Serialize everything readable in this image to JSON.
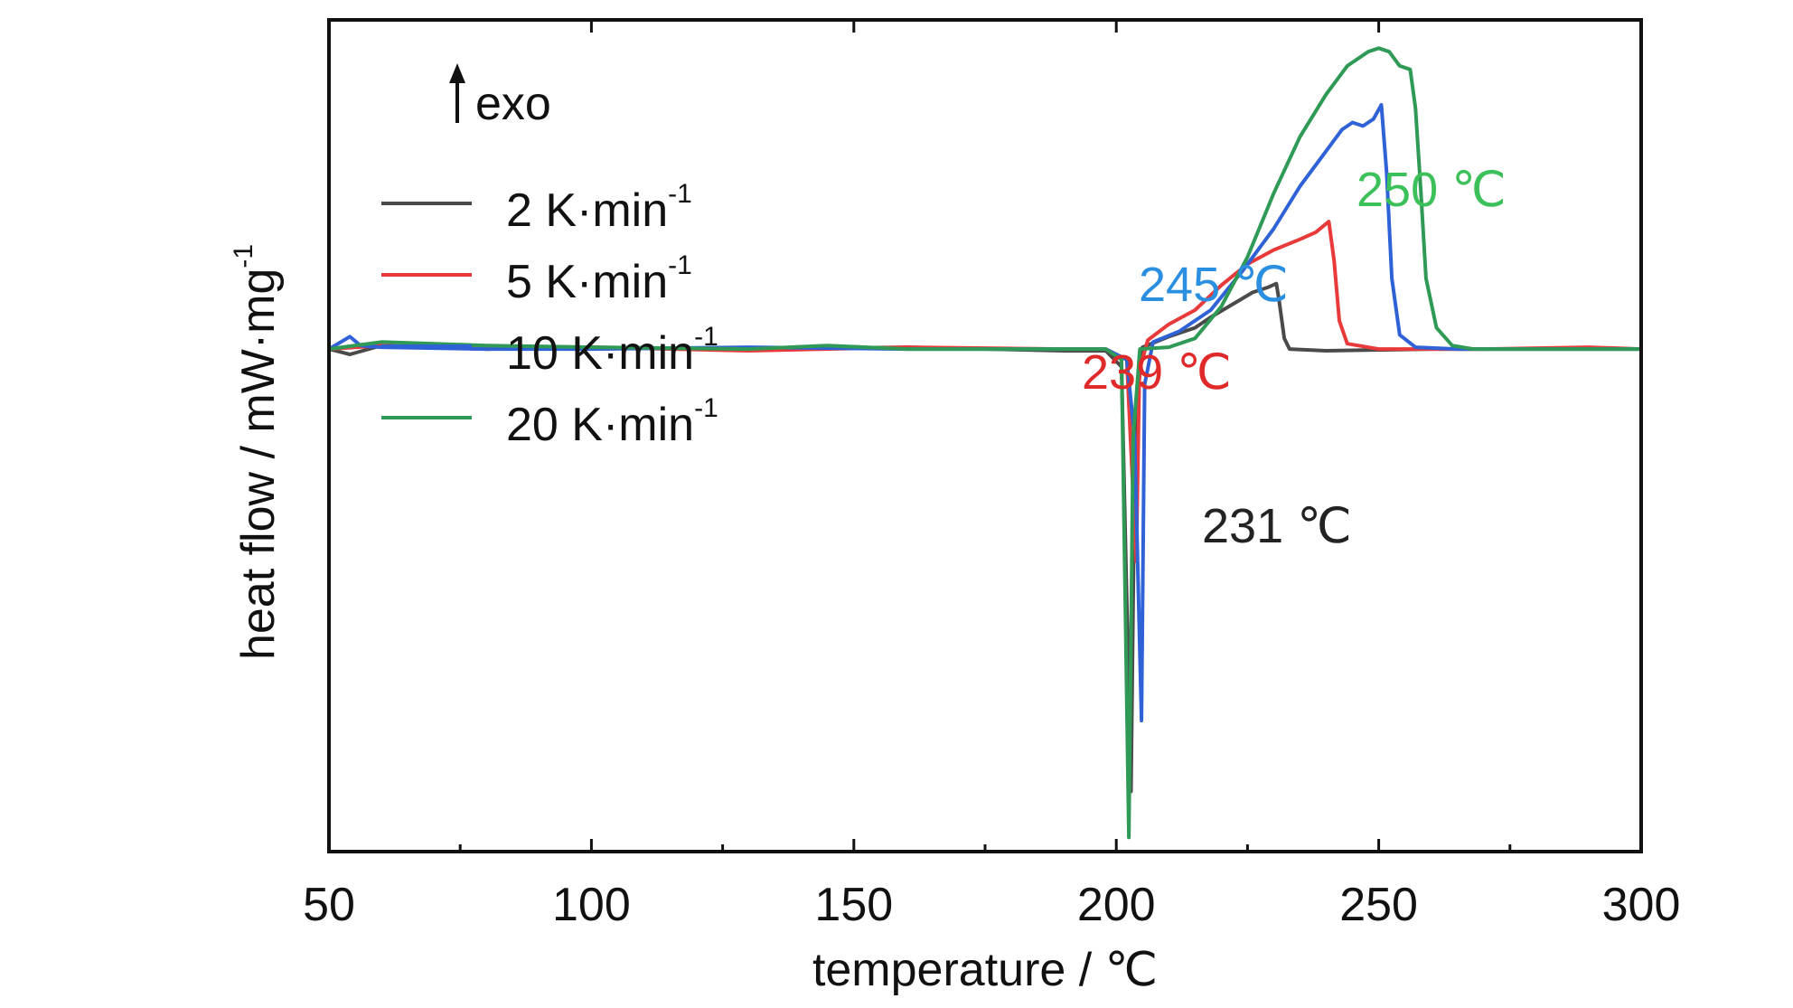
{
  "chart_data": {
    "type": "line",
    "xlabel": "temperature / ℃",
    "ylabel_main": "heat flow / mW·mg",
    "ylabel_sup": "-1",
    "xlim": [
      50,
      300
    ],
    "ylim": [
      -14.2,
      9.3
    ],
    "x_ticks": [
      50,
      100,
      150,
      200,
      250,
      300
    ],
    "x_tick_labels": [
      "50",
      "100",
      "150",
      "200",
      "250",
      "300"
    ],
    "x_minor_ticks": [
      75,
      125,
      175,
      225,
      275
    ],
    "exo_label": "exo",
    "legend_position": "top-left",
    "series": [
      {
        "name": "2 K·min",
        "name_sup": "-1",
        "color": "#4a4a4a",
        "points": [
          [
            50,
            0.0
          ],
          [
            54,
            -0.15
          ],
          [
            60,
            0.1
          ],
          [
            80,
            0.0
          ],
          [
            100,
            0.05
          ],
          [
            130,
            0.0
          ],
          [
            160,
            0.05
          ],
          [
            190,
            -0.05
          ],
          [
            198,
            -0.05
          ],
          [
            201,
            -0.5
          ],
          [
            202.8,
            -12.5
          ],
          [
            203.6,
            -2.0
          ],
          [
            205,
            0.05
          ],
          [
            210,
            0.35
          ],
          [
            215,
            0.6
          ],
          [
            218,
            0.9
          ],
          [
            222,
            1.25
          ],
          [
            226,
            1.6
          ],
          [
            229,
            1.75
          ],
          [
            230.5,
            1.85
          ],
          [
            231,
            1.4
          ],
          [
            232,
            0.3
          ],
          [
            233,
            0.0
          ],
          [
            240,
            -0.05
          ],
          [
            260,
            0.0
          ],
          [
            280,
            0.0
          ],
          [
            300,
            0.0
          ]
        ]
      },
      {
        "name": "5 K·min",
        "name_sup": "-1",
        "color": "#e83a3a",
        "points": [
          [
            50,
            0.0
          ],
          [
            60,
            0.1
          ],
          [
            80,
            0.0
          ],
          [
            100,
            0.05
          ],
          [
            130,
            -0.05
          ],
          [
            160,
            0.05
          ],
          [
            190,
            0.0
          ],
          [
            198,
            0.0
          ],
          [
            202,
            -0.3
          ],
          [
            203.8,
            -6.0
          ],
          [
            204.4,
            -0.6
          ],
          [
            206,
            0.25
          ],
          [
            210,
            0.7
          ],
          [
            215,
            1.1
          ],
          [
            220,
            1.8
          ],
          [
            225,
            2.4
          ],
          [
            230,
            2.8
          ],
          [
            235,
            3.1
          ],
          [
            238,
            3.3
          ],
          [
            240.5,
            3.6
          ],
          [
            241.5,
            2.5
          ],
          [
            242.5,
            0.8
          ],
          [
            244,
            0.15
          ],
          [
            250,
            0.0
          ],
          [
            270,
            0.0
          ],
          [
            290,
            0.05
          ],
          [
            300,
            0.0
          ]
        ]
      },
      {
        "name": "10 K·min",
        "name_sup": "-1",
        "color": "#2f62d6",
        "points": [
          [
            50,
            0.0
          ],
          [
            54,
            0.35
          ],
          [
            56,
            0.1
          ],
          [
            60,
            0.05
          ],
          [
            80,
            0.0
          ],
          [
            100,
            0.0
          ],
          [
            130,
            0.05
          ],
          [
            160,
            0.0
          ],
          [
            190,
            0.0
          ],
          [
            198,
            0.0
          ],
          [
            202,
            -0.3
          ],
          [
            203.5,
            -2.5
          ],
          [
            204.8,
            -10.5
          ],
          [
            205.4,
            -1.0
          ],
          [
            207,
            0.2
          ],
          [
            212,
            0.5
          ],
          [
            218,
            1.1
          ],
          [
            224,
            2.2
          ],
          [
            230,
            3.4
          ],
          [
            235,
            4.6
          ],
          [
            240,
            5.6
          ],
          [
            243,
            6.2
          ],
          [
            245,
            6.4
          ],
          [
            247,
            6.3
          ],
          [
            249,
            6.5
          ],
          [
            250.5,
            6.9
          ],
          [
            251.5,
            5.0
          ],
          [
            252.5,
            2.0
          ],
          [
            254,
            0.4
          ],
          [
            257,
            0.05
          ],
          [
            265,
            0.0
          ],
          [
            285,
            0.0
          ],
          [
            300,
            0.0
          ]
        ]
      },
      {
        "name": "20 K·min",
        "name_sup": "-1",
        "color": "#2f9a55",
        "points": [
          [
            50,
            0.0
          ],
          [
            60,
            0.2
          ],
          [
            70,
            0.15
          ],
          [
            80,
            0.1
          ],
          [
            100,
            0.05
          ],
          [
            130,
            0.0
          ],
          [
            145,
            0.1
          ],
          [
            160,
            0.0
          ],
          [
            190,
            0.0
          ],
          [
            198,
            0.0
          ],
          [
            201,
            -0.3
          ],
          [
            202.4,
            -13.8
          ],
          [
            203.2,
            -2.5
          ],
          [
            204.5,
            0.0
          ],
          [
            210,
            0.05
          ],
          [
            215,
            0.3
          ],
          [
            220,
            1.2
          ],
          [
            225,
            2.6
          ],
          [
            230,
            4.4
          ],
          [
            235,
            6.0
          ],
          [
            240,
            7.2
          ],
          [
            244,
            8.0
          ],
          [
            248,
            8.4
          ],
          [
            250,
            8.5
          ],
          [
            252,
            8.4
          ],
          [
            254,
            8.0
          ],
          [
            256,
            7.9
          ],
          [
            257,
            6.8
          ],
          [
            258,
            4.5
          ],
          [
            259,
            2.0
          ],
          [
            261,
            0.6
          ],
          [
            264,
            0.1
          ],
          [
            268,
            0.0
          ],
          [
            280,
            0.0
          ],
          [
            300,
            0.0
          ]
        ]
      }
    ],
    "annotations": [
      {
        "text": "231 ℃",
        "color": "#222222"
      },
      {
        "text": "239 ℃",
        "color": "#e02a2a"
      },
      {
        "text": "245 ℃",
        "color": "#2a8fe0"
      },
      {
        "text": "250 ℃",
        "color": "#3cc05a"
      }
    ]
  }
}
